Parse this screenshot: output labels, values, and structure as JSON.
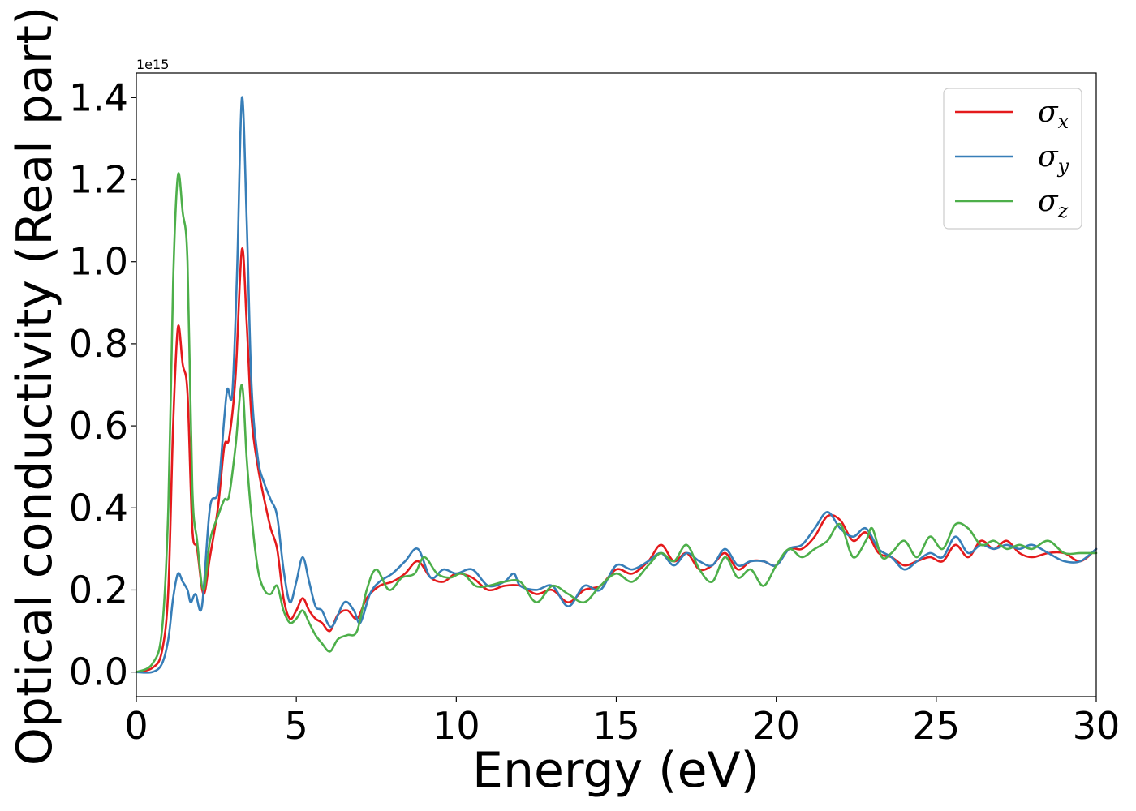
{
  "chart_data": {
    "type": "line",
    "title": "",
    "xlabel": "Energy (eV)",
    "ylabel": "Optical conductivity (Real part)",
    "y_offset_label": "1e15",
    "xlim": [
      0,
      30
    ],
    "ylim": [
      -0.06,
      1.46
    ],
    "x_ticks": [
      0,
      5,
      10,
      15,
      20,
      25,
      30
    ],
    "x_tick_labels": [
      "0",
      "5",
      "10",
      "15",
      "20",
      "25",
      "30"
    ],
    "y_ticks": [
      0.0,
      0.2,
      0.4,
      0.6,
      0.8,
      1.0,
      1.2,
      1.4
    ],
    "y_tick_labels": [
      "0.0",
      "0.2",
      "0.4",
      "0.6",
      "0.8",
      "1.0",
      "1.2",
      "1.4"
    ],
    "grid": false,
    "legend_position": "top-right",
    "series": [
      {
        "name": "σx",
        "symbol": "σ",
        "subscript": "x",
        "color": "#e41a1c",
        "points": [
          [
            0,
            0
          ],
          [
            0.5,
            0.01
          ],
          [
            0.8,
            0.05
          ],
          [
            1.0,
            0.2
          ],
          [
            1.15,
            0.6
          ],
          [
            1.3,
            0.84
          ],
          [
            1.45,
            0.75
          ],
          [
            1.6,
            0.68
          ],
          [
            1.75,
            0.35
          ],
          [
            1.9,
            0.3
          ],
          [
            2.1,
            0.19
          ],
          [
            2.3,
            0.28
          ],
          [
            2.55,
            0.4
          ],
          [
            2.75,
            0.55
          ],
          [
            2.9,
            0.57
          ],
          [
            3.1,
            0.72
          ],
          [
            3.3,
            1.03
          ],
          [
            3.45,
            0.85
          ],
          [
            3.6,
            0.62
          ],
          [
            3.8,
            0.5
          ],
          [
            4.0,
            0.42
          ],
          [
            4.2,
            0.35
          ],
          [
            4.4,
            0.3
          ],
          [
            4.6,
            0.18
          ],
          [
            4.8,
            0.13
          ],
          [
            5.0,
            0.15
          ],
          [
            5.2,
            0.18
          ],
          [
            5.4,
            0.15
          ],
          [
            5.6,
            0.13
          ],
          [
            5.8,
            0.12
          ],
          [
            6.05,
            0.1
          ],
          [
            6.3,
            0.14
          ],
          [
            6.6,
            0.15
          ],
          [
            6.9,
            0.13
          ],
          [
            7.2,
            0.18
          ],
          [
            7.6,
            0.21
          ],
          [
            8.0,
            0.22
          ],
          [
            8.4,
            0.24
          ],
          [
            8.8,
            0.27
          ],
          [
            9.2,
            0.23
          ],
          [
            9.6,
            0.22
          ],
          [
            10.0,
            0.24
          ],
          [
            10.5,
            0.23
          ],
          [
            11.0,
            0.2
          ],
          [
            11.5,
            0.21
          ],
          [
            12.0,
            0.21
          ],
          [
            12.5,
            0.19
          ],
          [
            13.0,
            0.2
          ],
          [
            13.5,
            0.17
          ],
          [
            14.0,
            0.2
          ],
          [
            14.5,
            0.21
          ],
          [
            15.0,
            0.25
          ],
          [
            15.5,
            0.24
          ],
          [
            16.0,
            0.27
          ],
          [
            16.4,
            0.31
          ],
          [
            16.8,
            0.27
          ],
          [
            17.2,
            0.29
          ],
          [
            17.6,
            0.25
          ],
          [
            18.0,
            0.26
          ],
          [
            18.4,
            0.29
          ],
          [
            18.8,
            0.25
          ],
          [
            19.2,
            0.27
          ],
          [
            19.6,
            0.27
          ],
          [
            20.0,
            0.26
          ],
          [
            20.4,
            0.3
          ],
          [
            20.8,
            0.3
          ],
          [
            21.2,
            0.33
          ],
          [
            21.6,
            0.38
          ],
          [
            22.0,
            0.37
          ],
          [
            22.4,
            0.32
          ],
          [
            22.8,
            0.34
          ],
          [
            23.2,
            0.29
          ],
          [
            23.6,
            0.28
          ],
          [
            24.0,
            0.26
          ],
          [
            24.4,
            0.27
          ],
          [
            24.8,
            0.28
          ],
          [
            25.2,
            0.27
          ],
          [
            25.6,
            0.31
          ],
          [
            26.0,
            0.28
          ],
          [
            26.4,
            0.32
          ],
          [
            26.8,
            0.3
          ],
          [
            27.2,
            0.32
          ],
          [
            27.6,
            0.29
          ],
          [
            28.0,
            0.28
          ],
          [
            28.5,
            0.29
          ],
          [
            29.0,
            0.29
          ],
          [
            29.5,
            0.27
          ],
          [
            30.0,
            0.3
          ]
        ]
      },
      {
        "name": "σy",
        "symbol": "σ",
        "subscript": "y",
        "color": "#377eb8",
        "points": [
          [
            0,
            0
          ],
          [
            0.5,
            0.0
          ],
          [
            0.8,
            0.02
          ],
          [
            1.0,
            0.08
          ],
          [
            1.15,
            0.18
          ],
          [
            1.3,
            0.24
          ],
          [
            1.45,
            0.22
          ],
          [
            1.6,
            0.2
          ],
          [
            1.7,
            0.17
          ],
          [
            1.85,
            0.19
          ],
          [
            2.05,
            0.16
          ],
          [
            2.3,
            0.4
          ],
          [
            2.55,
            0.44
          ],
          [
            2.75,
            0.62
          ],
          [
            2.85,
            0.69
          ],
          [
            3.0,
            0.68
          ],
          [
            3.15,
            0.98
          ],
          [
            3.3,
            1.4
          ],
          [
            3.45,
            1.1
          ],
          [
            3.6,
            0.7
          ],
          [
            3.8,
            0.52
          ],
          [
            4.0,
            0.46
          ],
          [
            4.2,
            0.42
          ],
          [
            4.4,
            0.38
          ],
          [
            4.6,
            0.25
          ],
          [
            4.8,
            0.17
          ],
          [
            5.0,
            0.22
          ],
          [
            5.2,
            0.28
          ],
          [
            5.4,
            0.22
          ],
          [
            5.6,
            0.16
          ],
          [
            5.8,
            0.15
          ],
          [
            6.1,
            0.11
          ],
          [
            6.5,
            0.17
          ],
          [
            6.8,
            0.15
          ],
          [
            7.0,
            0.12
          ],
          [
            7.3,
            0.19
          ],
          [
            7.6,
            0.22
          ],
          [
            8.0,
            0.24
          ],
          [
            8.4,
            0.27
          ],
          [
            8.8,
            0.3
          ],
          [
            9.2,
            0.23
          ],
          [
            9.6,
            0.25
          ],
          [
            10.0,
            0.24
          ],
          [
            10.5,
            0.25
          ],
          [
            11.0,
            0.21
          ],
          [
            11.5,
            0.22
          ],
          [
            11.8,
            0.24
          ],
          [
            12.0,
            0.21
          ],
          [
            12.5,
            0.2
          ],
          [
            13.0,
            0.21
          ],
          [
            13.5,
            0.16
          ],
          [
            14.0,
            0.21
          ],
          [
            14.5,
            0.2
          ],
          [
            15.0,
            0.26
          ],
          [
            15.5,
            0.25
          ],
          [
            16.0,
            0.27
          ],
          [
            16.4,
            0.29
          ],
          [
            16.8,
            0.26
          ],
          [
            17.2,
            0.29
          ],
          [
            17.6,
            0.27
          ],
          [
            18.0,
            0.26
          ],
          [
            18.4,
            0.3
          ],
          [
            18.8,
            0.26
          ],
          [
            19.2,
            0.27
          ],
          [
            19.6,
            0.27
          ],
          [
            20.0,
            0.26
          ],
          [
            20.4,
            0.3
          ],
          [
            20.8,
            0.31
          ],
          [
            21.2,
            0.35
          ],
          [
            21.6,
            0.39
          ],
          [
            22.0,
            0.35
          ],
          [
            22.4,
            0.33
          ],
          [
            22.8,
            0.35
          ],
          [
            23.2,
            0.3
          ],
          [
            23.6,
            0.28
          ],
          [
            24.0,
            0.25
          ],
          [
            24.4,
            0.27
          ],
          [
            24.8,
            0.29
          ],
          [
            25.2,
            0.28
          ],
          [
            25.6,
            0.33
          ],
          [
            26.0,
            0.29
          ],
          [
            26.4,
            0.31
          ],
          [
            26.8,
            0.3
          ],
          [
            27.2,
            0.31
          ],
          [
            27.6,
            0.3
          ],
          [
            28.0,
            0.31
          ],
          [
            28.5,
            0.29
          ],
          [
            29.0,
            0.27
          ],
          [
            29.5,
            0.27
          ],
          [
            30.0,
            0.3
          ]
        ]
      },
      {
        "name": "σz",
        "symbol": "σ",
        "subscript": "z",
        "color": "#4daf4a",
        "points": [
          [
            0,
            0
          ],
          [
            0.5,
            0.02
          ],
          [
            0.8,
            0.1
          ],
          [
            1.0,
            0.4
          ],
          [
            1.15,
            0.95
          ],
          [
            1.3,
            1.21
          ],
          [
            1.45,
            1.12
          ],
          [
            1.6,
            1.0
          ],
          [
            1.75,
            0.45
          ],
          [
            1.9,
            0.32
          ],
          [
            2.1,
            0.2
          ],
          [
            2.3,
            0.32
          ],
          [
            2.55,
            0.38
          ],
          [
            2.75,
            0.42
          ],
          [
            2.9,
            0.43
          ],
          [
            3.1,
            0.55
          ],
          [
            3.3,
            0.7
          ],
          [
            3.45,
            0.52
          ],
          [
            3.6,
            0.38
          ],
          [
            3.8,
            0.25
          ],
          [
            4.0,
            0.2
          ],
          [
            4.2,
            0.19
          ],
          [
            4.4,
            0.21
          ],
          [
            4.6,
            0.15
          ],
          [
            4.8,
            0.12
          ],
          [
            5.0,
            0.13
          ],
          [
            5.2,
            0.15
          ],
          [
            5.4,
            0.12
          ],
          [
            5.6,
            0.09
          ],
          [
            5.8,
            0.07
          ],
          [
            6.05,
            0.05
          ],
          [
            6.3,
            0.08
          ],
          [
            6.6,
            0.09
          ],
          [
            6.9,
            0.1
          ],
          [
            7.2,
            0.2
          ],
          [
            7.5,
            0.25
          ],
          [
            7.9,
            0.2
          ],
          [
            8.3,
            0.23
          ],
          [
            8.7,
            0.24
          ],
          [
            9.0,
            0.28
          ],
          [
            9.4,
            0.24
          ],
          [
            9.8,
            0.23
          ],
          [
            10.2,
            0.24
          ],
          [
            10.6,
            0.21
          ],
          [
            11.0,
            0.21
          ],
          [
            11.5,
            0.22
          ],
          [
            12.0,
            0.22
          ],
          [
            12.5,
            0.17
          ],
          [
            13.0,
            0.21
          ],
          [
            13.5,
            0.19
          ],
          [
            14.0,
            0.17
          ],
          [
            14.5,
            0.21
          ],
          [
            15.0,
            0.24
          ],
          [
            15.5,
            0.22
          ],
          [
            16.0,
            0.26
          ],
          [
            16.4,
            0.29
          ],
          [
            16.8,
            0.27
          ],
          [
            17.2,
            0.31
          ],
          [
            17.6,
            0.25
          ],
          [
            18.0,
            0.22
          ],
          [
            18.4,
            0.28
          ],
          [
            18.8,
            0.23
          ],
          [
            19.2,
            0.25
          ],
          [
            19.6,
            0.21
          ],
          [
            20.0,
            0.26
          ],
          [
            20.4,
            0.3
          ],
          [
            20.8,
            0.28
          ],
          [
            21.2,
            0.3
          ],
          [
            21.6,
            0.32
          ],
          [
            22.0,
            0.36
          ],
          [
            22.4,
            0.28
          ],
          [
            22.8,
            0.32
          ],
          [
            23.0,
            0.35
          ],
          [
            23.3,
            0.28
          ],
          [
            23.6,
            0.29
          ],
          [
            24.0,
            0.32
          ],
          [
            24.4,
            0.28
          ],
          [
            24.8,
            0.33
          ],
          [
            25.2,
            0.3
          ],
          [
            25.6,
            0.36
          ],
          [
            26.0,
            0.35
          ],
          [
            26.4,
            0.31
          ],
          [
            26.8,
            0.32
          ],
          [
            27.2,
            0.3
          ],
          [
            27.6,
            0.31
          ],
          [
            28.0,
            0.3
          ],
          [
            28.5,
            0.32
          ],
          [
            29.0,
            0.29
          ],
          [
            29.5,
            0.29
          ],
          [
            30.0,
            0.29
          ]
        ]
      }
    ]
  }
}
